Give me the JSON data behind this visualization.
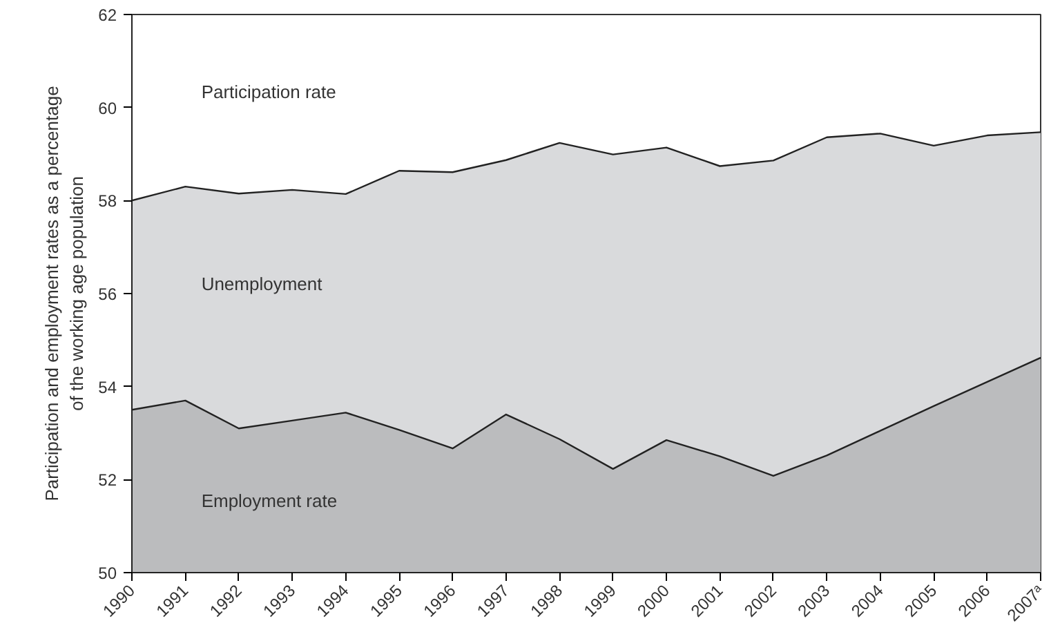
{
  "chart_data": {
    "type": "area",
    "ylabel": "Participation and employment rates as a percentage\nof the working age population",
    "categories": [
      "1990",
      "1991",
      "1992",
      "1993",
      "1994",
      "1995",
      "1996",
      "1997",
      "1998",
      "1999",
      "2000",
      "2001",
      "2002",
      "2003",
      "2004",
      "2005",
      "2006",
      "2007ᵃ"
    ],
    "series": [
      {
        "color": "#d9dadc",
        "values": [
          58.0,
          58.3,
          58.15,
          58.23,
          58.14,
          58.64,
          58.61,
          58.87,
          59.24,
          58.99,
          59.14,
          58.74,
          58.86,
          59.36,
          59.44,
          59.18,
          59.4,
          59.47
        ]
      },
      {
        "name": "Employment rate",
        "color": "#bbbcbe",
        "values": [
          53.5,
          53.7,
          53.1,
          53.27,
          53.44,
          53.07,
          52.67,
          53.4,
          52.87,
          52.23,
          52.85,
          52.5,
          52.08,
          52.52,
          53.05,
          53.58,
          54.1,
          54.62
        ]
      }
    ],
    "annotations": [
      "Participation rate",
      "Unemployment"
    ],
    "ylim": [
      50,
      62
    ],
    "yticks": [
      50,
      52,
      54,
      56,
      58,
      60,
      62
    ],
    "grid": false
  }
}
